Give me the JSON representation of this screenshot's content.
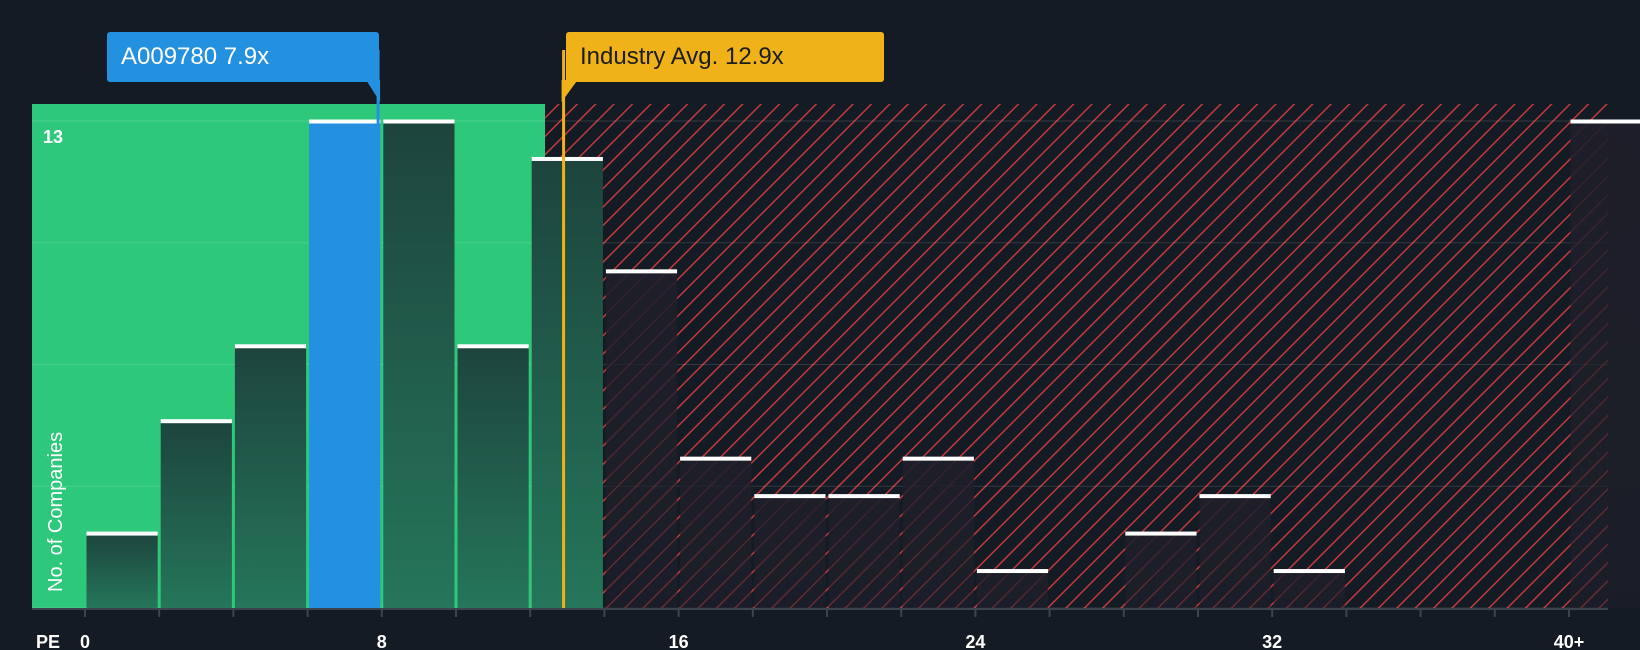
{
  "chart_data": {
    "type": "bar",
    "xlabel": "PE",
    "ylabel": "No. of Companies",
    "y_max_label": "13",
    "ylim": [
      0,
      13
    ],
    "bin_width": 2,
    "x_ticks": [
      "0",
      "8",
      "16",
      "24",
      "32",
      "40+"
    ],
    "x_tick_values": [
      0,
      8,
      16,
      24,
      32,
      40
    ],
    "bins": [
      {
        "x0": 0,
        "x1": 2,
        "value": 2
      },
      {
        "x0": 2,
        "x1": 4,
        "value": 5
      },
      {
        "x0": 4,
        "x1": 6,
        "value": 7
      },
      {
        "x0": 6,
        "x1": 8,
        "value": 13,
        "highlight": true
      },
      {
        "x0": 8,
        "x1": 10,
        "value": 13
      },
      {
        "x0": 10,
        "x1": 12,
        "value": 7
      },
      {
        "x0": 12,
        "x1": 14,
        "value": 12
      },
      {
        "x0": 14,
        "x1": 16,
        "value": 9
      },
      {
        "x0": 16,
        "x1": 18,
        "value": 4
      },
      {
        "x0": 18,
        "x1": 20,
        "value": 3
      },
      {
        "x0": 20,
        "x1": 22,
        "value": 3
      },
      {
        "x0": 22,
        "x1": 24,
        "value": 4
      },
      {
        "x0": 24,
        "x1": 26,
        "value": 1
      },
      {
        "x0": 26,
        "x1": 28,
        "value": 0
      },
      {
        "x0": 28,
        "x1": 30,
        "value": 2
      },
      {
        "x0": 30,
        "x1": 32,
        "value": 3
      },
      {
        "x0": 32,
        "x1": 34,
        "value": 1
      },
      {
        "x0": 34,
        "x1": 36,
        "value": 0
      },
      {
        "x0": 36,
        "x1": 38,
        "value": 0
      },
      {
        "x0": 38,
        "x1": 40,
        "value": 0
      },
      {
        "x0": 40,
        "x1": 42,
        "value": 13
      }
    ],
    "company": {
      "label": "A009780 7.9x",
      "value": 7.9
    },
    "industry": {
      "label": "Industry Avg. 12.9x",
      "value": 12.9
    },
    "colors": {
      "background": "#151b24",
      "green_zone": "#2ec87a",
      "red_hatch": "#c0393e",
      "bar_dark": "#1f4a40",
      "bar_red_zone": "#241f2b",
      "highlight": "#2490e0",
      "industry": "#efb319",
      "cap": "#ffffff"
    }
  }
}
